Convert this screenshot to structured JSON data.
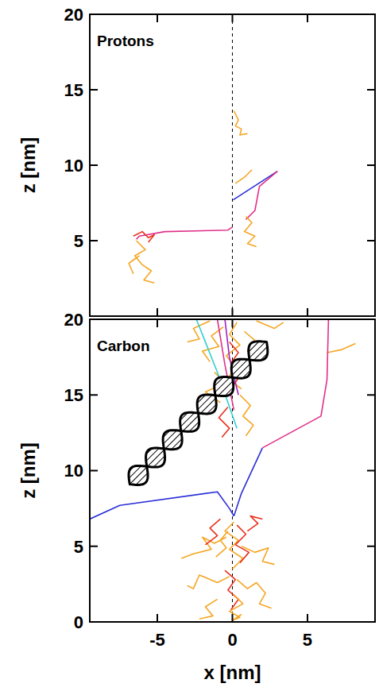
{
  "chart_data": [
    {
      "type": "line",
      "title": "Protons",
      "ylabel": "z [nm]",
      "xlim": [
        -9.5,
        9.5
      ],
      "ylim": [
        0,
        20
      ],
      "xticks": [
        -5,
        0,
        5
      ],
      "yticks": [
        5,
        10,
        15,
        20
      ],
      "tick_labels": "y",
      "vlines": [
        0
      ],
      "series": [
        {
          "color": "#f5a623",
          "x": [
            0.1,
            0.4,
            0.2,
            0.6,
            0.5,
            1.0
          ],
          "values": [
            13.6,
            13.0,
            12.6,
            12.4,
            12.0,
            12.1
          ]
        },
        {
          "color": "#2b2fd6",
          "x": [
            0.05,
            3.0
          ],
          "values": [
            7.7,
            9.6
          ]
        },
        {
          "color": "#e0308a",
          "x": [
            3.0,
            1.8,
            1.5,
            0.9
          ],
          "values": [
            9.6,
            8.6,
            7.0,
            6.4
          ]
        },
        {
          "color": "#f5a623",
          "x": [
            0.9,
            1.3,
            0.8,
            1.5,
            1.0,
            1.6
          ],
          "values": [
            6.6,
            6.2,
            5.6,
            5.3,
            4.8,
            4.6
          ]
        },
        {
          "color": "#f5a623",
          "x": [
            0.2,
            0.8,
            1.3
          ],
          "values": [
            8.8,
            9.2,
            9.7
          ]
        },
        {
          "color": "#e0308a",
          "x": [
            0.0,
            -0.3,
            -4.5,
            -6.2,
            -6.4
          ],
          "values": [
            5.9,
            5.7,
            5.6,
            5.3,
            5.1
          ]
        },
        {
          "color": "#e8321e",
          "x": [
            -6.6,
            -6.0,
            -5.6,
            -5.2,
            -5.6
          ],
          "values": [
            5.3,
            5.6,
            5.2,
            5.4,
            4.9
          ]
        },
        {
          "color": "#f5a623",
          "x": [
            -6.4,
            -5.8,
            -6.5,
            -6.0,
            -5.4,
            -5.9,
            -5.2
          ],
          "values": [
            5.0,
            4.4,
            4.0,
            3.4,
            3.0,
            2.4,
            2.2
          ]
        },
        {
          "color": "#f5a623",
          "x": [
            -6.2,
            -6.9,
            -6.6
          ],
          "values": [
            4.0,
            3.5,
            2.8
          ]
        }
      ]
    },
    {
      "type": "line",
      "title": "Carbon",
      "xlabel": "x [nm]",
      "ylabel": "z [nm]",
      "xlim": [
        -9.5,
        9.5
      ],
      "ylim": [
        0,
        20
      ],
      "xticks": [
        -5,
        0,
        5
      ],
      "yticks": [
        0,
        5,
        10,
        15,
        20
      ],
      "tick_labels": true,
      "vlines": [
        0
      ],
      "series": [
        {
          "color": "#f5a623",
          "x": [
            0.3,
            -0.2,
            0.5,
            -0.4,
            0.2,
            -0.3,
            0.6
          ],
          "values": [
            19.8,
            19.0,
            18.3,
            17.6,
            16.8,
            16.1,
            15.4
          ]
        },
        {
          "color": "#f5a623",
          "x": [
            -0.6,
            -1.4,
            -0.9,
            -2.0,
            -1.5
          ],
          "values": [
            19.5,
            18.9,
            18.2,
            17.9,
            17.2
          ]
        },
        {
          "color": "#f5a623",
          "x": [
            0.8,
            1.5,
            1.0,
            1.9,
            2.4
          ],
          "values": [
            19.2,
            18.6,
            17.9,
            17.5,
            18.2
          ]
        },
        {
          "color": "#e8321e",
          "x": [
            -0.2,
            0.4,
            -0.1,
            0.6,
            0.1
          ],
          "values": [
            18.5,
            17.8,
            17.1,
            16.4,
            15.7
          ]
        },
        {
          "color": "#f5a623",
          "x": [
            -1.2,
            -0.5,
            -1.8,
            -0.8
          ],
          "values": [
            16.5,
            15.8,
            15.2,
            14.5
          ]
        },
        {
          "color": "#f5a623",
          "x": [
            0.5,
            1.2,
            0.7,
            1.4,
            0.9
          ],
          "values": [
            15.0,
            14.3,
            13.6,
            13.0,
            12.3
          ]
        },
        {
          "color": "#e8321e",
          "x": [
            -0.3,
            -0.9,
            -0.2,
            -0.7
          ],
          "values": [
            14.2,
            13.5,
            12.8,
            12.2
          ]
        },
        {
          "color": "#f5a623",
          "x": [
            -1.5,
            -2.6,
            -2.2,
            -3.0
          ],
          "values": [
            19.9,
            19.4,
            18.7,
            18.5
          ]
        },
        {
          "color": "#f5a623",
          "x": [
            1.6,
            2.8,
            3.4
          ],
          "values": [
            19.9,
            19.4,
            19.8
          ]
        },
        {
          "color": "#f5a623",
          "x": [
            6.3,
            7.3,
            8.2
          ],
          "values": [
            17.8,
            18.0,
            18.4
          ]
        },
        {
          "color": "#30d0d0",
          "x": [
            -2.4,
            -1.0,
            0.3
          ],
          "values": [
            20.0,
            16.5,
            12.8
          ]
        },
        {
          "color": "#e0308a",
          "x": [
            -1.0,
            -0.5,
            0.1
          ],
          "values": [
            20.0,
            17.0,
            14.0
          ]
        },
        {
          "color": "#a020c0",
          "x": [
            -0.5,
            -0.2,
            0.4
          ],
          "values": [
            20.0,
            17.5,
            15.0
          ]
        },
        {
          "color": "#f5a623",
          "x": [
            0.1,
            -0.5,
            0.4,
            -0.2,
            0.7,
            0.0
          ],
          "values": [
            6.6,
            6.0,
            5.4,
            4.8,
            4.2,
            3.5
          ]
        },
        {
          "color": "#e8321e",
          "x": [
            0.3,
            0.9,
            0.2,
            1.1,
            0.5
          ],
          "values": [
            6.4,
            5.8,
            5.1,
            4.6,
            3.9
          ]
        },
        {
          "color": "#f5a623",
          "x": [
            -0.4,
            -1.2,
            -2.0,
            -1.4,
            -2.6,
            -3.4
          ],
          "values": [
            5.6,
            5.2,
            5.6,
            4.8,
            4.5,
            4.2
          ]
        },
        {
          "color": "#f5a623",
          "x": [
            -0.2,
            -1.0,
            -2.2,
            -2.6,
            -3.0
          ],
          "values": [
            3.0,
            2.6,
            3.1,
            2.2,
            2.4
          ]
        },
        {
          "color": "#e8321e",
          "x": [
            -0.5,
            0.2,
            -0.3,
            0.4,
            -0.1
          ],
          "values": [
            3.4,
            2.8,
            2.1,
            1.5,
            0.8
          ]
        },
        {
          "color": "#f5a623",
          "x": [
            0.3,
            1.0,
            1.6,
            2.2,
            1.8,
            2.6
          ],
          "values": [
            2.8,
            2.2,
            2.6,
            1.9,
            1.2,
            0.9
          ]
        },
        {
          "color": "#f5a623",
          "x": [
            0.6,
            1.5,
            2.4,
            2.0,
            2.8
          ],
          "values": [
            5.0,
            4.6,
            4.9,
            4.0,
            3.8
          ]
        },
        {
          "color": "#e8321e",
          "x": [
            -0.8,
            -1.5,
            -1.0,
            -1.8
          ],
          "values": [
            6.8,
            6.2,
            5.7,
            5.1
          ]
        },
        {
          "color": "#f5a623",
          "x": [
            0.1,
            0.7,
            -0.2,
            0.5,
            0.0,
            0.6
          ],
          "values": [
            1.8,
            1.2,
            0.7,
            0.3,
            0.1,
            0.5
          ]
        },
        {
          "color": "#f5a623",
          "x": [
            -1.0,
            -1.8,
            -1.3,
            -2.2
          ],
          "values": [
            1.5,
            1.0,
            0.4,
            0.2
          ]
        },
        {
          "color": "#e8321e",
          "x": [
            1.0,
            1.7,
            1.2,
            2.0
          ],
          "values": [
            6.0,
            6.5,
            7.0,
            6.8
          ]
        },
        {
          "color": "#f5a623",
          "x": [
            -0.3,
            -0.8,
            -0.4,
            -1.1
          ],
          "values": [
            6.0,
            5.4,
            4.9,
            4.3
          ]
        },
        {
          "color": "#2b2fd6",
          "x": [
            -9.5,
            -7.5,
            -1.0,
            -0.2,
            0.1
          ],
          "values": [
            6.8,
            7.7,
            8.6,
            7.5,
            7.0
          ]
        },
        {
          "color": "#2b2fd6",
          "x": [
            0.1,
            0.6,
            2.0
          ],
          "values": [
            7.0,
            8.5,
            11.5
          ]
        },
        {
          "color": "#e0308a",
          "x": [
            2.0,
            5.9,
            6.3,
            6.4
          ],
          "values": [
            11.5,
            13.6,
            16.0,
            20.0
          ]
        }
      ]
    }
  ]
}
